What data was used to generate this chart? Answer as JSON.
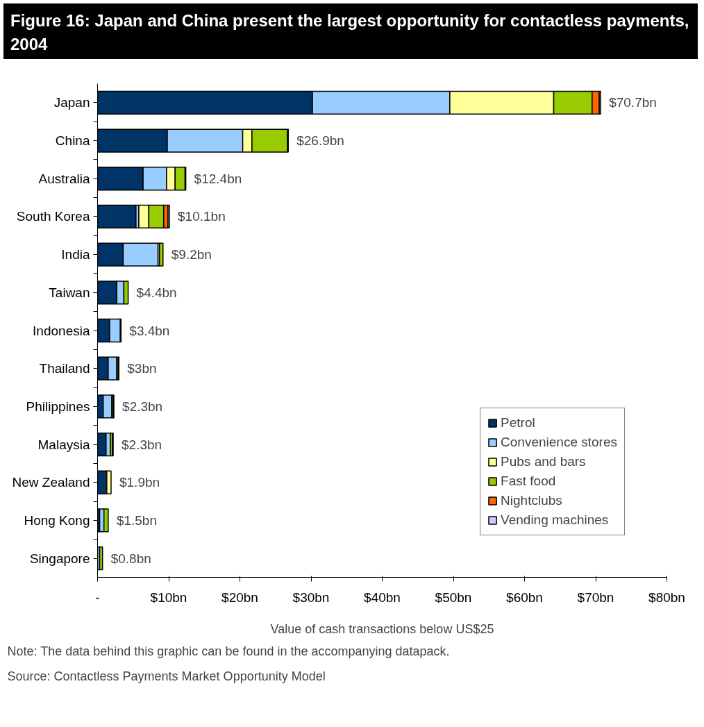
{
  "chart_data": {
    "type": "bar",
    "orientation": "horizontal",
    "stacked": true,
    "title": "Figure 16:        Japan and China present the largest opportunity for contactless payments, 2004",
    "xlabel": "Value of cash transactions below US$25",
    "categories": [
      "Japan",
      "China",
      "Australia",
      "South Korea",
      "India",
      "Taiwan",
      "Indonesia",
      "Thailand",
      "Philippines",
      "Malaysia",
      "New Zealand",
      "Hong Kong",
      "Singapore"
    ],
    "series": [
      {
        "name": "Petrol",
        "color": "#003366",
        "values": [
          30.2,
          9.8,
          6.4,
          5.4,
          3.6,
          2.7,
          1.7,
          1.5,
          0.8,
          1.2,
          1.1,
          0.3,
          null
        ]
      },
      {
        "name": "Convenience stores",
        "color": "#99ccff",
        "values": [
          19.3,
          10.6,
          3.3,
          0.4,
          4.9,
          1.0,
          1.5,
          1.2,
          1.2,
          0.6,
          0.2,
          0.6,
          0.3
        ]
      },
      {
        "name": "Pubs and bars",
        "color": "#ffff99",
        "values": [
          14.6,
          1.3,
          1.2,
          1.4,
          0.2,
          null,
          0,
          0,
          0,
          null,
          0.6,
          0,
          0
        ]
      },
      {
        "name": "Fast food",
        "color": "#99cc00",
        "values": [
          5.4,
          5.0,
          1.4,
          2.1,
          0.5,
          0.6,
          null,
          0.2,
          0.2,
          0.3,
          0,
          0.6,
          0.4
        ]
      },
      {
        "name": "Nightclubs",
        "color": "#ff6600",
        "values": [
          1.0,
          null,
          0.1,
          0.6,
          0,
          0,
          0,
          0,
          0,
          0,
          0,
          0,
          0
        ]
      },
      {
        "name": "Vending machines",
        "color": "#ccccff",
        "values": [
          0.2,
          0.1,
          0,
          0.2,
          0,
          0,
          0.1,
          0.1,
          0.1,
          0.1,
          0,
          0,
          0
        ]
      }
    ],
    "totals": [
      "$70.7bn",
      "$26.9bn",
      "$12.4bn",
      "$10.1bn",
      "$9.2bn",
      "$4.4bn",
      "$3.4bn",
      "$3bn",
      "$2.3bn",
      "$2.3bn",
      "$1.9bn",
      "$1.5bn",
      "$0.8bn"
    ],
    "xlim": [
      0,
      80
    ],
    "xticks": [
      {
        "value": 0,
        "label": "-"
      },
      {
        "value": 10,
        "label": "$10bn"
      },
      {
        "value": 20,
        "label": "$20bn"
      },
      {
        "value": 30,
        "label": "$30bn"
      },
      {
        "value": 40,
        "label": "$40bn"
      },
      {
        "value": 50,
        "label": "$50bn"
      },
      {
        "value": 60,
        "label": "$60bn"
      },
      {
        "value": 70,
        "label": "$70bn"
      },
      {
        "value": 80,
        "label": "$80bn"
      }
    ],
    "grid": false,
    "legend": "bottom right",
    "annotations": [
      "Note: The data behind this graphic can be found in the accompanying datapack.",
      "Source: Contactless Payments Market Opportunity Model"
    ]
  }
}
